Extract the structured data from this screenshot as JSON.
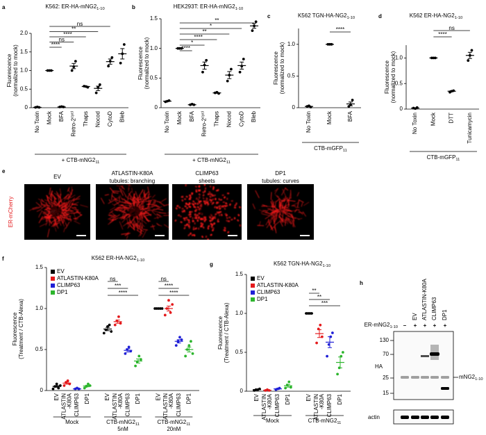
{
  "chart_data": [
    {
      "type": "dotplot",
      "letter": "a",
      "title": {
        "text": "K562: ER-HA-mNG2",
        "sub": "1-10"
      },
      "ylabel": [
        "Fluorescence",
        "(normalized to mock)"
      ],
      "ylim": [
        0,
        2
      ],
      "yticks": [
        0,
        0.5,
        {
          "value": 1,
          "label": "1.0"
        },
        1.5,
        {
          "value": 2,
          "label": "2.0"
        }
      ],
      "categories": [
        "No Toxin",
        "Mock",
        "BFA",
        {
          "text": "Retro-2",
          "sup": "cycl"
        },
        "Thaps",
        "Nocod",
        "CytoD",
        "Bleb"
      ],
      "values": [
        [
          0.01,
          0.02,
          0.01
        ],
        [
          1,
          1,
          1
        ],
        [
          0.02,
          0.03,
          0.02
        ],
        [
          1.0,
          1.1,
          1.25
        ],
        [
          0.58,
          0.57,
          0.55
        ],
        [
          0.4,
          0.55,
          0.62
        ],
        [
          1.12,
          1.25,
          1.35
        ],
        [
          1.2,
          1.45,
          1.7
        ]
      ],
      "means": [
        0.01,
        1,
        0.02,
        1.12,
        0.57,
        0.52,
        1.24,
        1.45
      ],
      "errors": [
        0.005,
        0,
        0.005,
        0.07,
        0.01,
        0.06,
        0.07,
        0.14
      ],
      "significance": [
        {
          "pair": [
            1,
            2
          ],
          "label": "****"
        },
        {
          "pair": [
            1,
            3
          ],
          "label": "ns"
        },
        {
          "pair": [
            1,
            4
          ],
          "label": "****"
        },
        {
          "pair": [
            1,
            5
          ],
          "label": "**"
        },
        {
          "pair": [
            1,
            6
          ],
          "label": "ns"
        }
      ],
      "footer": {
        "text": "+ CTB-mNG2",
        "sub": "11"
      }
    },
    {
      "type": "dotplot",
      "letter": "b",
      "title": {
        "text": "HEK293T: ER-HA-mNG2",
        "sub": "1-10"
      },
      "ylabel": [
        "Fluorescence",
        "(normalized to mock)"
      ],
      "ylim": [
        0,
        1.5
      ],
      "yticks": [
        0,
        0.5,
        {
          "value": 1,
          "label": "1.0"
        },
        1.5
      ],
      "categories": [
        "No Toxin",
        "Mock",
        "BFA",
        {
          "text": "Retro-2",
          "sup": "cycl"
        },
        "Thaps",
        "Nocod",
        "CytoD",
        "Bleb"
      ],
      "values": [
        [
          0.1,
          0.11,
          0.12
        ],
        [
          1,
          1,
          1
        ],
        [
          0.05,
          0.06,
          0.05
        ],
        [
          0.6,
          0.72,
          0.8
        ],
        [
          0.25,
          0.26,
          0.24
        ],
        [
          0.45,
          0.55,
          0.65
        ],
        [
          0.6,
          0.7,
          0.82
        ],
        [
          1.3,
          1.38,
          1.45
        ]
      ],
      "means": [
        0.11,
        1,
        0.05,
        0.71,
        0.25,
        0.55,
        0.71,
        1.38
      ],
      "errors": [
        0.006,
        0,
        0.003,
        0.06,
        0.006,
        0.06,
        0.06,
        0.04
      ],
      "significance": [
        {
          "pair": [
            1,
            2
          ],
          "label": "****"
        },
        {
          "pair": [
            1,
            3
          ],
          "label": "*"
        },
        {
          "pair": [
            1,
            4
          ],
          "label": "****"
        },
        {
          "pair": [
            1,
            5
          ],
          "label": "**"
        },
        {
          "pair": [
            1,
            6
          ],
          "label": "*"
        },
        {
          "pair": [
            1,
            7
          ],
          "label": "**"
        }
      ],
      "footer": {
        "text": "+ CTB-mNG2",
        "sub": "11"
      }
    },
    {
      "type": "dotplot",
      "letter": "c",
      "title": {
        "text": "K562 TGN-HA-NG2",
        "sub": "1-10"
      },
      "ylabel": [
        "Fluorescence",
        "(normalized to mock)"
      ],
      "ylim": [
        0,
        1.25
      ],
      "yticks": [
        0,
        0.5,
        {
          "value": 1,
          "label": "1.0"
        }
      ],
      "categories": [
        "No Toxin",
        "Mock",
        "BFA"
      ],
      "values": [
        [
          0.02,
          0.03,
          0.01
        ],
        [
          1,
          1,
          1
        ],
        [
          0.02,
          0.05,
          0.12
        ]
      ],
      "means": [
        0.02,
        1,
        0.06
      ],
      "errors": [
        0.006,
        0,
        0.03
      ],
      "significance": [
        {
          "pair": [
            1,
            2
          ],
          "label": "****"
        }
      ],
      "footer": {
        "text": "CTB-mGFP",
        "sub": "11"
      }
    },
    {
      "type": "dotplot",
      "letter": "d",
      "title": {
        "text": "K562 ER-HA-NG2",
        "sub": "1-10"
      },
      "ylabel": [
        "Fluorescence",
        "(normalized to mock)"
      ],
      "ylim": [
        0,
        1.25
      ],
      "yticks": [
        0,
        0.5,
        {
          "value": 1,
          "label": "1.0"
        }
      ],
      "categories": [
        "No Toxin",
        "Mock",
        "DTT",
        "Tunicamycin"
      ],
      "values": [
        [
          0.02,
          0.01,
          0.03
        ],
        [
          1,
          1,
          1
        ],
        [
          0.33,
          0.35,
          0.36
        ],
        [
          0.95,
          1.05,
          1.15
        ]
      ],
      "means": [
        0.02,
        1,
        0.35,
        1.05
      ],
      "errors": [
        0.006,
        0,
        0.009,
        0.06
      ],
      "significance": [
        {
          "pair": [
            1,
            2
          ],
          "label": "****"
        },
        {
          "pair": [
            1,
            3
          ],
          "label": "ns"
        }
      ],
      "footer": {
        "text": "CTB-mGFP",
        "sub": "11"
      }
    },
    {
      "type": "grouped_dotplot",
      "letter": "f",
      "title": {
        "text": "K562 ER-HA-NG2",
        "sub": "1-10"
      },
      "ylabel": [
        "Fluorescence",
        "(Treatment / CTB-Alexa)"
      ],
      "ylim": [
        0,
        1.5
      ],
      "yticks": [
        0,
        0.5,
        {
          "value": 1,
          "label": "1.0"
        },
        1.5
      ],
      "legend": "upper left",
      "series": [
        {
          "name": "EV",
          "color": "#000000"
        },
        {
          "name": "ATLASTIN-K80A",
          "color": "#e41a1c"
        },
        {
          "name": "CLIMP63",
          "color": "#1f1fd6"
        },
        {
          "name": "DP1",
          "color": "#2db52d"
        }
      ],
      "categories": [
        "EV",
        [
          "ATLASTIN",
          "-K80A"
        ],
        "CLIMP63",
        "DP1"
      ],
      "groups": [
        {
          "text": "Mock"
        },
        {
          "text": "CTB-mNG2",
          "sub": "11",
          "dose": "5nM"
        },
        {
          "text": "CTB-mNG2",
          "sub": "11",
          "dose": "20nM"
        }
      ],
      "values": [
        [
          [
            0.02,
            0.05,
            0.08,
            0.03,
            0.06
          ],
          [
            0.06,
            0.1,
            0.12,
            0.08
          ],
          [
            0.02,
            0.03,
            0.02
          ],
          [
            0.03,
            0.05,
            0.08,
            0.06
          ]
        ],
        [
          [
            0.7,
            0.74,
            0.78,
            0.8,
            0.72
          ],
          [
            0.8,
            0.85,
            0.9,
            0.82
          ],
          [
            0.45,
            0.5,
            0.53,
            0.48
          ],
          [
            0.3,
            0.35,
            0.42,
            0.38
          ]
        ],
        [
          [
            1,
            1,
            1,
            1,
            1
          ],
          [
            0.92,
            1.0,
            1.1,
            0.95,
            1.05
          ],
          [
            0.55,
            0.6,
            0.65,
            0.62
          ],
          [
            0.42,
            0.5,
            0.55,
            0.6,
            0.45
          ]
        ]
      ],
      "means": [
        [
          0.05,
          0.09,
          0.02,
          0.055
        ],
        [
          0.75,
          0.84,
          0.49,
          0.36
        ],
        [
          1,
          1.0,
          0.6,
          0.5
        ]
      ],
      "errors": [
        [
          0.01,
          0.013,
          0.003,
          0.01
        ],
        [
          0.02,
          0.02,
          0.02,
          0.025
        ],
        [
          0,
          0.03,
          0.02,
          0.03
        ]
      ],
      "significance": [
        {
          "group": 1,
          "pair": [
            0,
            3
          ],
          "label": "****"
        },
        {
          "group": 1,
          "pair": [
            0,
            2
          ],
          "label": "***"
        },
        {
          "group": 1,
          "pair": [
            0,
            1
          ],
          "label": "ns"
        },
        {
          "group": 2,
          "pair": [
            0,
            3
          ],
          "label": "****"
        },
        {
          "group": 2,
          "pair": [
            0,
            2
          ],
          "label": "****"
        },
        {
          "group": 2,
          "pair": [
            0,
            1
          ],
          "label": "ns"
        }
      ]
    },
    {
      "type": "grouped_dotplot",
      "letter": "g",
      "title": {
        "text": "K562 TGN-HA-NG2",
        "sub": "1-10"
      },
      "ylabel": [
        "Fluorescence",
        "(Treatment / CTB-Alexa)"
      ],
      "ylim": [
        0,
        1.5
      ],
      "yticks": [
        0,
        0.5,
        {
          "value": 1,
          "label": "1.0"
        },
        1.5
      ],
      "legend": "upper left",
      "series": [
        {
          "name": "EV",
          "color": "#000000"
        },
        {
          "name": "ATLASTIN-K80A",
          "color": "#e41a1c"
        },
        {
          "name": "CLIMP63",
          "color": "#1f1fd6"
        },
        {
          "name": "DP1",
          "color": "#2db52d"
        }
      ],
      "categories": [
        "EV",
        [
          "ATLASTIN",
          "-K80A"
        ],
        "CLIMP63",
        "DP1"
      ],
      "groups": [
        {
          "text": "Mock"
        },
        {
          "text": "CTB-mNG2",
          "sub": "11"
        }
      ],
      "values": [
        [
          [
            0.01,
            0.02,
            0.02,
            0.03
          ],
          [
            0.01,
            0.02,
            0.01
          ],
          [
            0.02,
            0.03,
            0.04
          ],
          [
            0.04,
            0.08,
            0.12,
            0.05
          ]
        ],
        [
          [
            1,
            1,
            1,
            1
          ],
          [
            0.62,
            0.8,
            0.85,
            0.7
          ],
          [
            0.45,
            0.6,
            0.7,
            0.75
          ],
          [
            0.22,
            0.3,
            0.45,
            0.5
          ]
        ]
      ],
      "means": [
        [
          0.02,
          0.013,
          0.03,
          0.07
        ],
        [
          1,
          0.74,
          0.63,
          0.37
        ]
      ],
      "errors": [
        [
          0.004,
          0.003,
          0.006,
          0.018
        ],
        [
          0,
          0.05,
          0.07,
          0.07
        ]
      ],
      "significance": [
        {
          "group": 1,
          "pair": [
            0,
            3
          ],
          "label": "***"
        },
        {
          "group": 1,
          "pair": [
            0,
            2
          ],
          "label": "**"
        },
        {
          "group": 1,
          "pair": [
            0,
            1
          ],
          "label": "**"
        }
      ]
    }
  ],
  "images": {
    "letter": "e",
    "side_label": "ER-mCherry",
    "panels": [
      [
        "EV"
      ],
      [
        "ATLASTIN-K80A",
        "tubules: branching"
      ],
      [
        "CLIMP63",
        "sheets"
      ],
      [
        "DP1",
        "tubules: curves"
      ]
    ]
  },
  "blot": {
    "letter": "h",
    "lane_labels": [
      "EV",
      "ATLASTIN-K80A",
      "CLIMP63",
      "DP1"
    ],
    "treatment": {
      "text": "ER-mNG2",
      "sub": "1-10"
    },
    "signs": [
      "–",
      "+",
      "+",
      "+",
      "+"
    ],
    "markers": [
      "130",
      "70",
      "25",
      "15"
    ],
    "antibody": "HA",
    "band_label": {
      "text": "mNG2",
      "sub": "1-10"
    },
    "loading": "actin"
  }
}
